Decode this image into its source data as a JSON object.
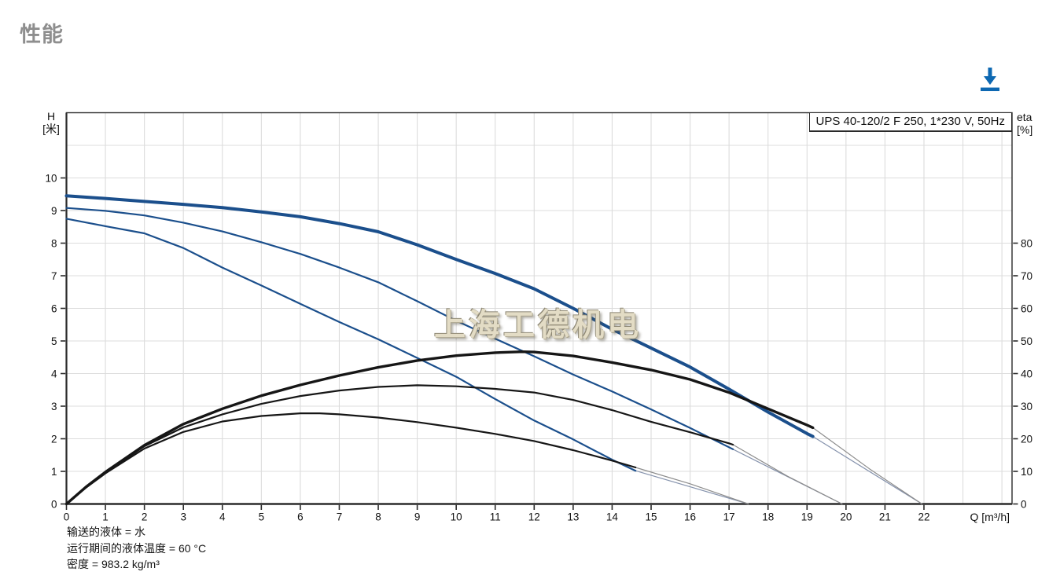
{
  "page": {
    "title": "性能"
  },
  "toolbar": {
    "download_tooltip": "download"
  },
  "watermark": {
    "text": "上海工德机电"
  },
  "footer": {
    "lines": [
      "输送的液体 = 水",
      "运行期间的液体温度 = 60 °C",
      "密度 = 983.2 kg/m³"
    ]
  },
  "chart_data": {
    "type": "line",
    "title_box": "UPS 40-120/2 F 250, 1*230 V, 50Hz",
    "legend_position": "none",
    "grid": true,
    "colors": {
      "curve_blue": "#1b4f8c",
      "curve_black": "#161616",
      "tail_blue": "#8693ad",
      "tail_gray": "#8c8c8c",
      "grid": "#dcdcdc",
      "axis": "#2a2a2a",
      "tick_text": "#111111",
      "accent_blue": "#0d68b2"
    },
    "x_axis": {
      "label": "Q [m³/h]",
      "min": 0,
      "max": 24.26,
      "grid_step": 1,
      "ticks": [
        0,
        1,
        2,
        3,
        4,
        5,
        6,
        7,
        8,
        9,
        10,
        11,
        12,
        13,
        14,
        15,
        16,
        17,
        18,
        19,
        20,
        21,
        22
      ]
    },
    "y_left": {
      "label_line1": "H",
      "label_line2": "[米]",
      "min": 0,
      "max": 12,
      "grid_step": 1,
      "ticks": [
        0,
        1,
        2,
        3,
        4,
        5,
        6,
        7,
        8,
        9,
        10
      ]
    },
    "y_right": {
      "label_line1": "eta",
      "label_line2": "[%]",
      "min": 0,
      "max": 120,
      "ticks": [
        0,
        10,
        20,
        30,
        40,
        50,
        60,
        70,
        80
      ]
    },
    "series": [
      {
        "name": "head-curve-speed3",
        "axis": "H",
        "color_key": "curve_blue",
        "width": 4,
        "points": [
          [
            0,
            9.45
          ],
          [
            1,
            9.37
          ],
          [
            2,
            9.28
          ],
          [
            3,
            9.19
          ],
          [
            4,
            9.09
          ],
          [
            5,
            8.96
          ],
          [
            6,
            8.81
          ],
          [
            7,
            8.6
          ],
          [
            8,
            8.35
          ],
          [
            9,
            7.95
          ],
          [
            10,
            7.5
          ],
          [
            11,
            7.07
          ],
          [
            12,
            6.6
          ],
          [
            13,
            6.0
          ],
          [
            14,
            5.36
          ],
          [
            15,
            4.78
          ],
          [
            16,
            4.2
          ],
          [
            17,
            3.52
          ],
          [
            18,
            2.82
          ],
          [
            19,
            2.16
          ],
          [
            19.15,
            2.07
          ]
        ]
      },
      {
        "name": "head-curve-speed2",
        "axis": "H",
        "color_key": "curve_blue",
        "width": 2.2,
        "points": [
          [
            0,
            9.08
          ],
          [
            1,
            8.99
          ],
          [
            2,
            8.85
          ],
          [
            3,
            8.63
          ],
          [
            4,
            8.36
          ],
          [
            5,
            8.03
          ],
          [
            6,
            7.67
          ],
          [
            7,
            7.25
          ],
          [
            8,
            6.8
          ],
          [
            9,
            6.22
          ],
          [
            10,
            5.62
          ],
          [
            11,
            5.07
          ],
          [
            12,
            4.53
          ],
          [
            13,
            3.97
          ],
          [
            14,
            3.45
          ],
          [
            15,
            2.9
          ],
          [
            16,
            2.33
          ],
          [
            17,
            1.74
          ],
          [
            17.1,
            1.68
          ]
        ]
      },
      {
        "name": "head-curve-speed1",
        "axis": "H",
        "color_key": "curve_blue",
        "width": 2.2,
        "points": [
          [
            0,
            8.75
          ],
          [
            1,
            8.52
          ],
          [
            2,
            8.3
          ],
          [
            3,
            7.85
          ],
          [
            4,
            7.25
          ],
          [
            5,
            6.7
          ],
          [
            6,
            6.14
          ],
          [
            7,
            5.58
          ],
          [
            8,
            5.05
          ],
          [
            9,
            4.48
          ],
          [
            10,
            3.9
          ],
          [
            11,
            3.22
          ],
          [
            12,
            2.56
          ],
          [
            13,
            1.98
          ],
          [
            14,
            1.36
          ],
          [
            14.6,
            1.02
          ]
        ]
      },
      {
        "name": "eta-curve-speed3",
        "axis": "E",
        "color_key": "curve_black",
        "width": 3.4,
        "points": [
          [
            0,
            0
          ],
          [
            0.5,
            5.2
          ],
          [
            1,
            9.8
          ],
          [
            2,
            18
          ],
          [
            3,
            24.5
          ],
          [
            4,
            29.2
          ],
          [
            5,
            33.2
          ],
          [
            6,
            36.5
          ],
          [
            7,
            39.4
          ],
          [
            8,
            41.9
          ],
          [
            9,
            44
          ],
          [
            10,
            45.5
          ],
          [
            11,
            46.4
          ],
          [
            11.7,
            46.7
          ],
          [
            12,
            46.6
          ],
          [
            13,
            45.4
          ],
          [
            14,
            43.4
          ],
          [
            15,
            41.1
          ],
          [
            16,
            38.2
          ],
          [
            17,
            34.2
          ],
          [
            18,
            29.2
          ],
          [
            19,
            24.2
          ],
          [
            19.15,
            23.4
          ]
        ]
      },
      {
        "name": "eta-curve-speed2",
        "axis": "E",
        "color_key": "curve_black",
        "width": 2.2,
        "points": [
          [
            0,
            0
          ],
          [
            0.5,
            5.2
          ],
          [
            1,
            9.6
          ],
          [
            2,
            17.7
          ],
          [
            3,
            23.5
          ],
          [
            4,
            27.5
          ],
          [
            5,
            30.7
          ],
          [
            6,
            33.1
          ],
          [
            7,
            34.8
          ],
          [
            8,
            35.9
          ],
          [
            9,
            36.4
          ],
          [
            10,
            36.1
          ],
          [
            11,
            35.3
          ],
          [
            12,
            34.2
          ],
          [
            13,
            31.9
          ],
          [
            14,
            28.8
          ],
          [
            15,
            25.2
          ],
          [
            16,
            22
          ],
          [
            17,
            18.6
          ],
          [
            17.1,
            18.2
          ]
        ]
      },
      {
        "name": "eta-curve-speed1",
        "axis": "E",
        "color_key": "curve_black",
        "width": 2.2,
        "points": [
          [
            0,
            0
          ],
          [
            0.5,
            5
          ],
          [
            1,
            9.4
          ],
          [
            2,
            17
          ],
          [
            3,
            22.1
          ],
          [
            4,
            25.3
          ],
          [
            5,
            27
          ],
          [
            6,
            27.8
          ],
          [
            6.5,
            27.8
          ],
          [
            7,
            27.5
          ],
          [
            8,
            26.5
          ],
          [
            9,
            25.1
          ],
          [
            10,
            23.4
          ],
          [
            11,
            21.5
          ],
          [
            12,
            19.3
          ],
          [
            13,
            16.5
          ],
          [
            14,
            13.3
          ],
          [
            14.6,
            11.2
          ]
        ]
      },
      {
        "name": "head-tail-speed3",
        "axis": "H",
        "color_key": "tail_blue",
        "width": 1.2,
        "points": [
          [
            19.15,
            2.07
          ],
          [
            21.95,
            0
          ]
        ]
      },
      {
        "name": "head-tail-speed2",
        "axis": "H",
        "color_key": "tail_blue",
        "width": 1.2,
        "points": [
          [
            17.1,
            1.68
          ],
          [
            19.9,
            0
          ]
        ]
      },
      {
        "name": "head-tail-speed1",
        "axis": "H",
        "color_key": "tail_blue",
        "width": 1.2,
        "points": [
          [
            14.6,
            1.02
          ],
          [
            17.5,
            0
          ]
        ]
      },
      {
        "name": "eta-tail-speed3",
        "axis": "E",
        "color_key": "tail_gray",
        "width": 1.2,
        "points": [
          [
            19.15,
            23.4
          ],
          [
            20.6,
            10.8
          ],
          [
            21.95,
            0
          ]
        ]
      },
      {
        "name": "eta-tail-speed2",
        "axis": "E",
        "color_key": "tail_gray",
        "width": 1.2,
        "points": [
          [
            17.1,
            18.2
          ],
          [
            18.5,
            8.5
          ],
          [
            19.9,
            0
          ]
        ]
      },
      {
        "name": "eta-tail-speed1",
        "axis": "E",
        "color_key": "tail_gray",
        "width": 1.2,
        "points": [
          [
            14.6,
            11.2
          ],
          [
            16,
            6.2
          ],
          [
            17.5,
            0
          ]
        ]
      }
    ]
  }
}
